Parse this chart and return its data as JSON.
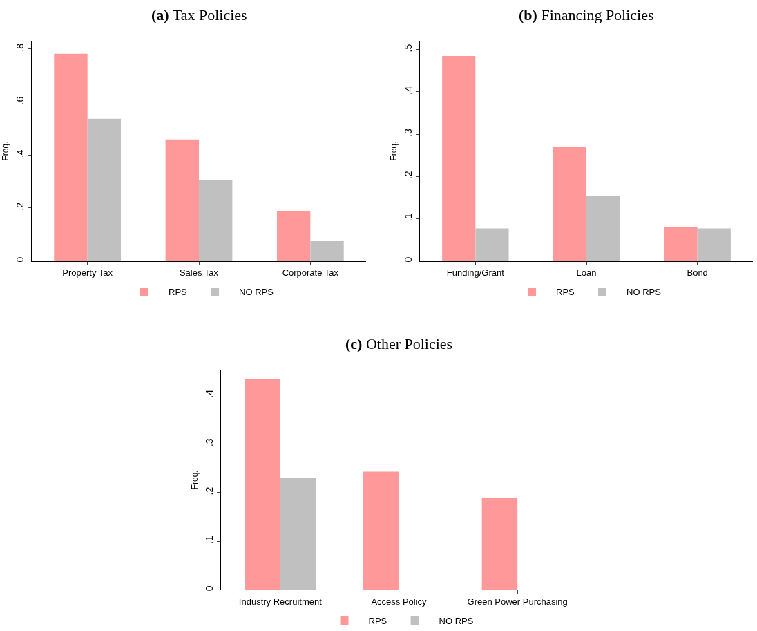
{
  "chart_data": [
    {
      "type": "bar",
      "title": "(a) Tax Policies",
      "ylabel": "Freq.",
      "categories": [
        "Property Tax",
        "Sales Tax",
        "Corporate Tax"
      ],
      "series": [
        {
          "name": "RPS",
          "color": "#ff9999",
          "values": [
            0.782,
            0.459,
            0.188
          ]
        },
        {
          "name": "NO RPS",
          "color": "#c0c0c0",
          "values": [
            0.537,
            0.305,
            0.076
          ]
        }
      ],
      "ylim": [
        0,
        0.83
      ],
      "yticks": [
        0,
        {
          "value": 0.2,
          "label": ".2"
        },
        {
          "value": 0.4,
          "label": ".4"
        },
        {
          "value": 0.6,
          "label": ".6"
        },
        {
          "value": 0.8,
          "label": ".8"
        }
      ],
      "grid": false,
      "legend": "bottom"
    },
    {
      "type": "bar",
      "title": "(b) Financing Policies",
      "ylabel": "Freq.",
      "categories": [
        "Funding/Grant",
        "Loan",
        "Bond"
      ],
      "series": [
        {
          "name": "RPS",
          "color": "#ff9999",
          "values": [
            0.485,
            0.269,
            0.08
          ]
        },
        {
          "name": "NO RPS",
          "color": "#c0c0c0",
          "values": [
            0.077,
            0.153,
            0.077
          ]
        }
      ],
      "ylim": [
        0,
        0.52
      ],
      "yticks": [
        0,
        {
          "value": 0.1,
          "label": ".1"
        },
        {
          "value": 0.2,
          "label": ".2"
        },
        {
          "value": 0.3,
          "label": ".3"
        },
        {
          "value": 0.4,
          "label": ".4"
        },
        {
          "value": 0.5,
          "label": ".5"
        }
      ],
      "grid": false,
      "legend": "bottom"
    },
    {
      "type": "bar",
      "title": "(c) Other Policies",
      "ylabel": "Freq.",
      "categories": [
        "Industry Recruitment",
        "Access Policy",
        "Green Power Purchasing"
      ],
      "series": [
        {
          "name": "RPS",
          "color": "#ff9999",
          "values": [
            0.433,
            0.243,
            0.189
          ]
        },
        {
          "name": "NO RPS",
          "color": "#c0c0c0",
          "values": [
            0.23,
            0,
            0
          ]
        }
      ],
      "ylim": [
        0,
        0.452
      ],
      "yticks": [
        0,
        {
          "value": 0.1,
          "label": ".1"
        },
        {
          "value": 0.2,
          "label": ".2"
        },
        {
          "value": 0.3,
          "label": ".3"
        },
        {
          "value": 0.4,
          "label": ".4"
        }
      ],
      "grid": false,
      "legend": "bottom"
    }
  ]
}
